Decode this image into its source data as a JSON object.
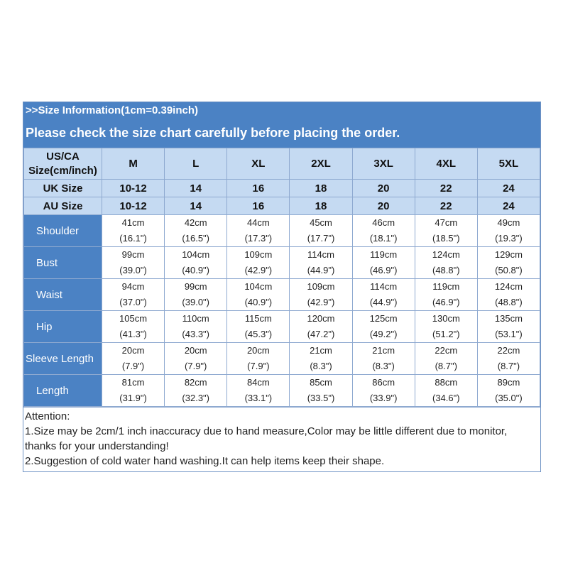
{
  "banner": {
    "line1": ">>Size Information(1cm=0.39inch)",
    "line2": "Please check the size chart carefully before placing the order."
  },
  "header_rows": [
    {
      "label": "US/CA Size(cm/inch)",
      "values": [
        "M",
        "L",
        "XL",
        "2XL",
        "3XL",
        "4XL",
        "5XL"
      ]
    },
    {
      "label": "UK Size",
      "values": [
        "10-12",
        "14",
        "16",
        "18",
        "20",
        "22",
        "24"
      ]
    },
    {
      "label": "AU  Size",
      "values": [
        "10-12",
        "14",
        "16",
        "18",
        "20",
        "22",
        "24"
      ]
    }
  ],
  "measure_rows": [
    {
      "label": "Shoulder",
      "cells": [
        {
          "cm": "41cm",
          "in": "(16.1\")"
        },
        {
          "cm": "42cm",
          "in": "(16.5\")"
        },
        {
          "cm": "44cm",
          "in": "(17.3\")"
        },
        {
          "cm": "45cm",
          "in": "(17.7\")"
        },
        {
          "cm": "46cm",
          "in": "(18.1\")"
        },
        {
          "cm": "47cm",
          "in": "(18.5\")"
        },
        {
          "cm": "49cm",
          "in": "(19.3\")"
        }
      ]
    },
    {
      "label": "Bust",
      "cells": [
        {
          "cm": "99cm",
          "in": "(39.0\")"
        },
        {
          "cm": "104cm",
          "in": "(40.9\")"
        },
        {
          "cm": "109cm",
          "in": "(42.9\")"
        },
        {
          "cm": "114cm",
          "in": "(44.9\")"
        },
        {
          "cm": "119cm",
          "in": "(46.9\")"
        },
        {
          "cm": "124cm",
          "in": "(48.8\")"
        },
        {
          "cm": "129cm",
          "in": "(50.8\")"
        }
      ]
    },
    {
      "label": "Waist",
      "cells": [
        {
          "cm": "94cm",
          "in": "(37.0\")"
        },
        {
          "cm": "99cm",
          "in": "(39.0\")"
        },
        {
          "cm": "104cm",
          "in": "(40.9\")"
        },
        {
          "cm": "109cm",
          "in": "(42.9\")"
        },
        {
          "cm": "114cm",
          "in": "(44.9\")"
        },
        {
          "cm": "119cm",
          "in": "(46.9\")"
        },
        {
          "cm": "124cm",
          "in": "(48.8\")"
        }
      ]
    },
    {
      "label": "Hip",
      "cells": [
        {
          "cm": "105cm",
          "in": "(41.3\")"
        },
        {
          "cm": "110cm",
          "in": "(43.3\")"
        },
        {
          "cm": "115cm",
          "in": "(45.3\")"
        },
        {
          "cm": "120cm",
          "in": "(47.2\")"
        },
        {
          "cm": "125cm",
          "in": "(49.2\")"
        },
        {
          "cm": "130cm",
          "in": "(51.2\")"
        },
        {
          "cm": "135cm",
          "in": "(53.1\")"
        }
      ]
    },
    {
      "label": "Sleeve Length",
      "cells": [
        {
          "cm": "20cm",
          "in": "(7.9\")"
        },
        {
          "cm": "20cm",
          "in": "(7.9\")"
        },
        {
          "cm": "20cm",
          "in": "(7.9\")"
        },
        {
          "cm": "21cm",
          "in": "(8.3\")"
        },
        {
          "cm": "21cm",
          "in": "(8.3\")"
        },
        {
          "cm": "22cm",
          "in": "(8.7\")"
        },
        {
          "cm": "22cm",
          "in": "(8.7\")"
        }
      ]
    },
    {
      "label": "Length",
      "cells": [
        {
          "cm": "81cm",
          "in": "(31.9\")"
        },
        {
          "cm": "82cm",
          "in": "(32.3\")"
        },
        {
          "cm": "84cm",
          "in": "(33.1\")"
        },
        {
          "cm": "85cm",
          "in": "(33.5\")"
        },
        {
          "cm": "86cm",
          "in": "(33.9\")"
        },
        {
          "cm": "88cm",
          "in": "(34.6\")"
        },
        {
          "cm": "89cm",
          "in": "(35.0\")"
        }
      ]
    }
  ],
  "notes": {
    "title": "Attention:",
    "line1": "1.Size may be 2cm/1 inch inaccuracy due to hand measure,Color may be little different due to monitor, thanks for your understanding!",
    "line2": "2.Suggestion of cold water hand washing.It can help items keep their shape."
  },
  "colors": {
    "banner": "#4b82c4",
    "header_cells": "#c5daf2",
    "label_cells": "#4b82c4",
    "borders": "#8ea9d0"
  }
}
